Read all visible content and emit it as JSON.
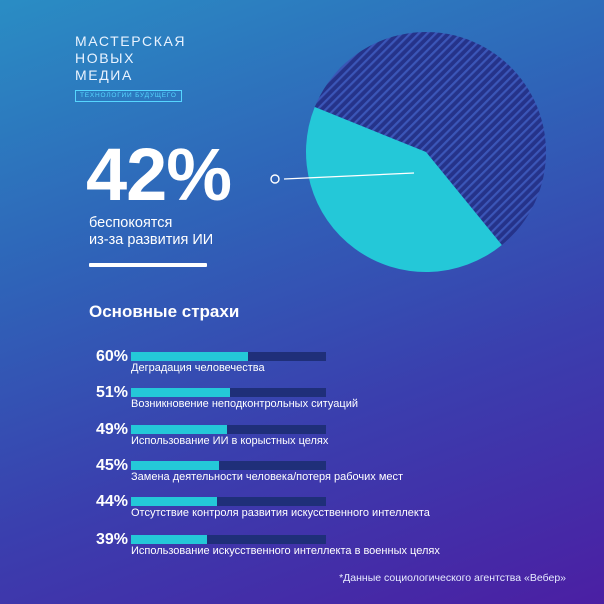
{
  "logo": {
    "line1": "МАСТЕРСКАЯ",
    "line2": "НОВЫХ МЕДИА",
    "tagline": "ТЕХНОЛОГИИ БУДУЩЕГО"
  },
  "headline": {
    "percent": "42%",
    "description_line1": "беспокоятся",
    "description_line2": "из-за развития ИИ"
  },
  "section_title": "Основные страхи",
  "footnote": "*Данные социологического агентства «Вебер»",
  "colors": {
    "accent": "#24c8d8",
    "bar_track": "#1f2f79",
    "pie_dark": "#25338a",
    "pie_stripe": "#3b56b8"
  },
  "chart_data": [
    {
      "type": "pie",
      "title": "",
      "slices": [
        {
          "label": "беспокоятся из-за развития ИИ",
          "value": 42,
          "color": "#24c8d8"
        },
        {
          "label": "",
          "value": 58,
          "color": "#25338a"
        }
      ]
    },
    {
      "type": "bar",
      "title": "Основные страхи",
      "orientation": "horizontal",
      "xlim": [
        0,
        100
      ],
      "categories": [
        "Деградация человечества",
        "Возникновение неподконтрольных ситуаций",
        "Использование ИИ в корыстных целях",
        "Замена деятельности человека/потеря рабочих мест",
        "Отсутствие контроля развития искусственного интеллекта",
        "Использование искусственного интеллекта в военных целях"
      ],
      "values": [
        60,
        51,
        49,
        45,
        44,
        39
      ],
      "value_labels": [
        "60%",
        "51%",
        "49%",
        "45%",
        "44%",
        "39%"
      ]
    }
  ]
}
